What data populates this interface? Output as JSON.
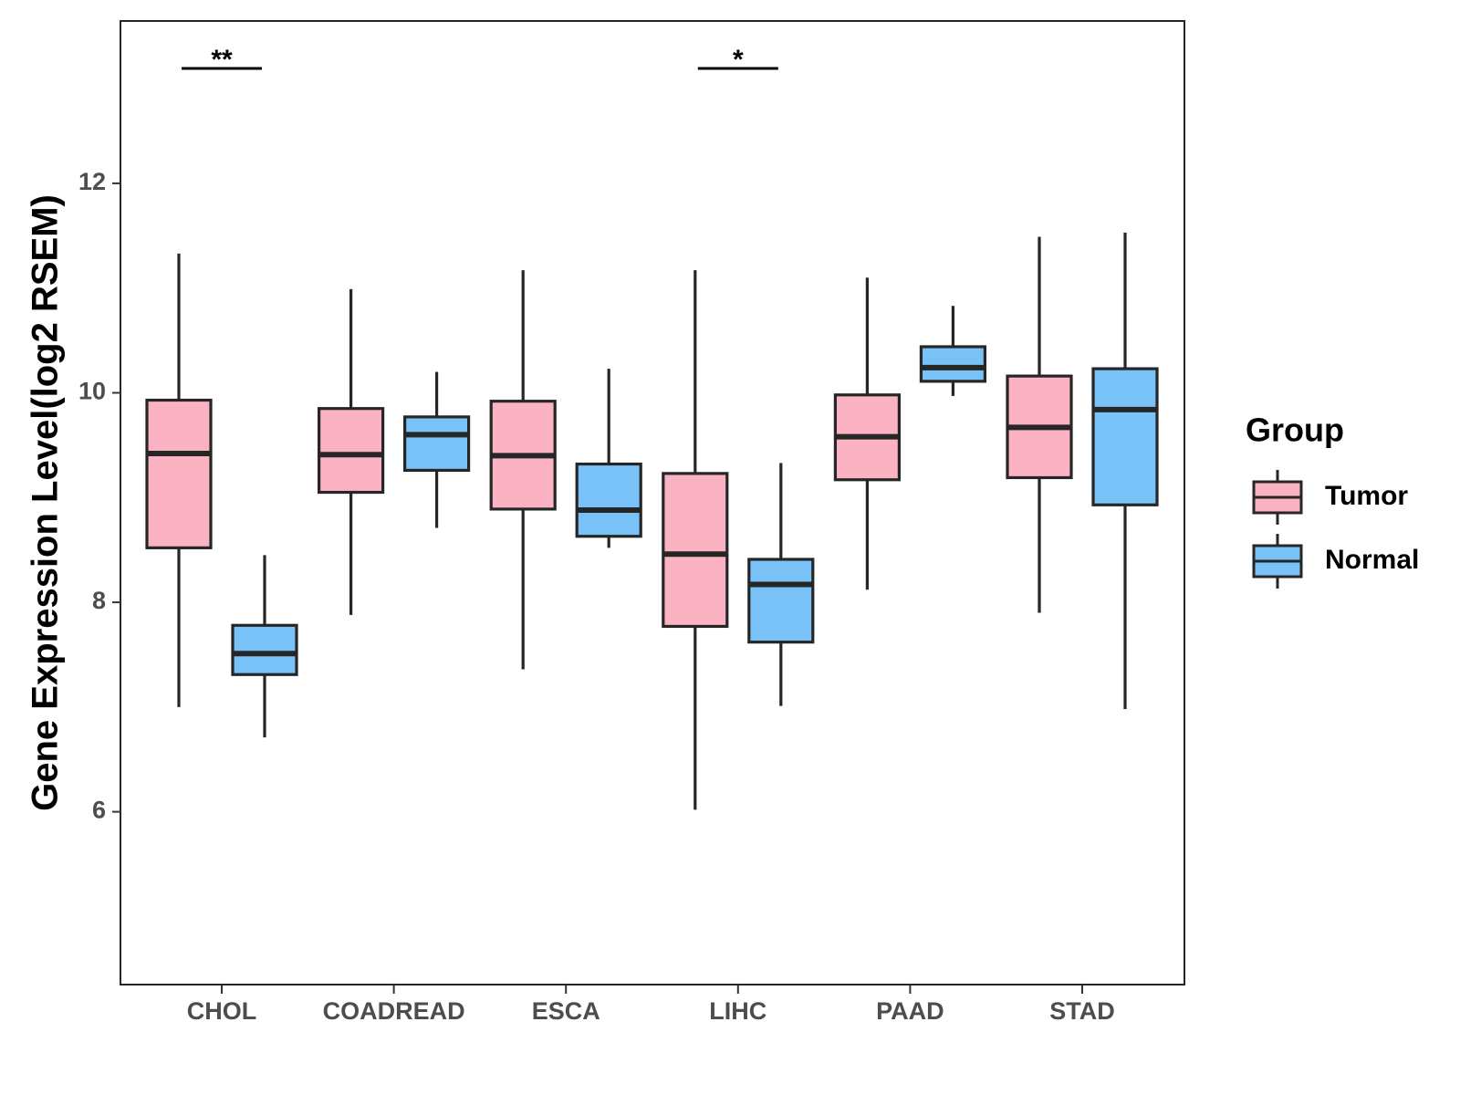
{
  "chart_data": {
    "type": "boxplot",
    "title": "",
    "xlabel": "",
    "ylabel": "Gene Expression Level(log2 RSEM)",
    "ylim": [
      4.35,
      13.55
    ],
    "yticks": [
      6,
      8,
      10,
      12
    ],
    "ytick_labels": [
      "6",
      "8",
      "10",
      "12"
    ],
    "categories": [
      "CHOL",
      "COADREAD",
      "ESCA",
      "LIHC",
      "PAAD",
      "STAD"
    ],
    "legend": {
      "title": "Group",
      "placement": "right",
      "entries": [
        "Tumor",
        "Normal"
      ]
    },
    "colors": {
      "Tumor": "#fbb2c3",
      "Normal": "#78c2f7",
      "outline": "#262626"
    },
    "series": [
      {
        "name": "Tumor",
        "boxes": [
          {
            "category": "CHOL",
            "min": 7.0,
            "q1": 8.52,
            "median": 9.42,
            "q3": 9.93,
            "max": 11.33
          },
          {
            "category": "COADREAD",
            "min": 7.88,
            "q1": 9.05,
            "median": 9.41,
            "q3": 9.85,
            "max": 10.99
          },
          {
            "category": "ESCA",
            "min": 7.36,
            "q1": 8.89,
            "median": 9.4,
            "q3": 9.92,
            "max": 11.17
          },
          {
            "category": "LIHC",
            "min": 6.02,
            "q1": 7.77,
            "median": 8.46,
            "q3": 9.23,
            "max": 11.17
          },
          {
            "category": "PAAD",
            "min": 8.12,
            "q1": 9.17,
            "median": 9.58,
            "q3": 9.98,
            "max": 11.1
          },
          {
            "category": "STAD",
            "min": 7.9,
            "q1": 9.19,
            "median": 9.67,
            "q3": 10.16,
            "max": 11.49
          }
        ]
      },
      {
        "name": "Normal",
        "boxes": [
          {
            "category": "CHOL",
            "min": 6.71,
            "q1": 7.31,
            "median": 7.51,
            "q3": 7.78,
            "max": 8.45
          },
          {
            "category": "COADREAD",
            "min": 8.71,
            "q1": 9.26,
            "median": 9.6,
            "q3": 9.77,
            "max": 10.2
          },
          {
            "category": "ESCA",
            "min": 8.52,
            "q1": 8.63,
            "median": 8.88,
            "q3": 9.32,
            "max": 10.23
          },
          {
            "category": "LIHC",
            "min": 7.01,
            "q1": 7.62,
            "median": 8.17,
            "q3": 8.41,
            "max": 9.33
          },
          {
            "category": "PAAD",
            "min": 9.97,
            "q1": 10.11,
            "median": 10.24,
            "q3": 10.44,
            "max": 10.83
          },
          {
            "category": "STAD",
            "min": 6.98,
            "q1": 8.93,
            "median": 9.84,
            "q3": 10.23,
            "max": 11.53
          }
        ]
      }
    ],
    "annotations": [
      {
        "category": "CHOL",
        "label": "**"
      },
      {
        "category": "LIHC",
        "label": "*"
      }
    ]
  }
}
